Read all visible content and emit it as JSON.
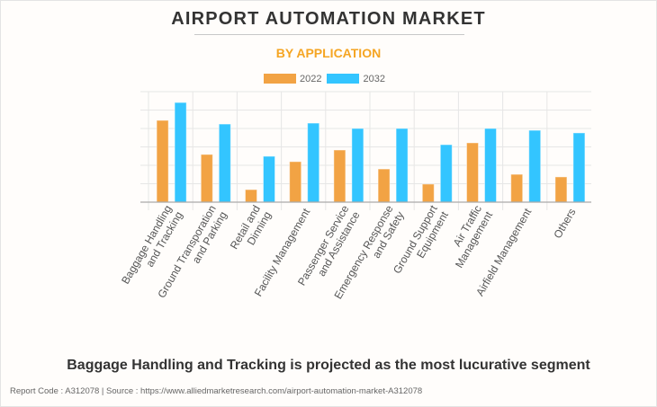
{
  "header": {
    "title": "AIRPORT AUTOMATION MARKET",
    "subtitle": "BY APPLICATION"
  },
  "colors": {
    "series_2022": "#F2A344",
    "series_2032": "#33C5FF",
    "subtitle": "#F5A523",
    "grid": "#E6E6E6",
    "axis": "#AAAAAA",
    "label": "#555555"
  },
  "chart_data": {
    "type": "bar",
    "title": "AIRPORT AUTOMATION MARKET",
    "subtitle": "BY APPLICATION",
    "xlabel": "",
    "ylabel": "",
    "ylim": [
      0,
      6
    ],
    "yticks_labeled": false,
    "grid": true,
    "legend_position": "top-center",
    "categories": [
      [
        "Baggage Handling",
        "and Tracking"
      ],
      [
        "Ground Transporation",
        "and Parking"
      ],
      [
        "Retail and",
        "Dinning"
      ],
      [
        "Facility Management"
      ],
      [
        "Passenger Service",
        "and Assistance"
      ],
      [
        "Emergency Response",
        "and Safety"
      ],
      [
        "Ground Support",
        "Equipment"
      ],
      [
        "Air Traffic",
        "Management"
      ],
      [
        "Airfield Management"
      ],
      [
        "Others"
      ]
    ],
    "series": [
      {
        "name": "2022",
        "values": [
          4.44,
          2.59,
          0.68,
          2.2,
          2.83,
          1.8,
          0.98,
          3.22,
          1.51,
          1.37
        ]
      },
      {
        "name": "2032",
        "values": [
          5.41,
          4.24,
          2.49,
          4.29,
          4.0,
          4.0,
          3.12,
          4.0,
          3.9,
          3.76
        ]
      }
    ]
  },
  "legend": [
    {
      "label": "2022"
    },
    {
      "label": "2032"
    }
  ],
  "headline": "Baggage Handling and Tracking is projected as the most lucurative segment",
  "footer": "Report Code : A312078  |  Source : https://www.alliedmarketresearch.com/airport-automation-market-A312078"
}
